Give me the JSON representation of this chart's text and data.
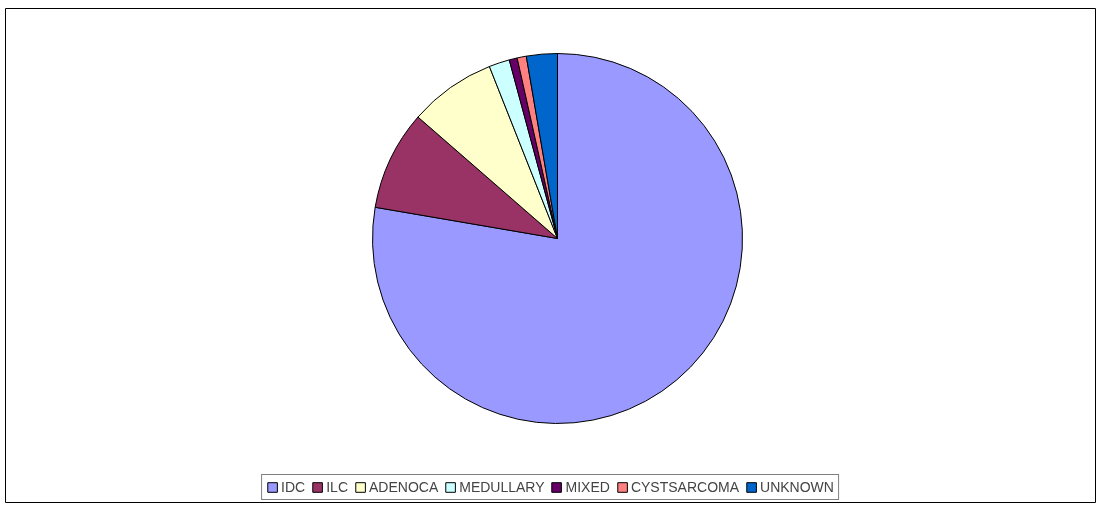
{
  "chart_data": {
    "type": "pie",
    "categories": [
      "IDC",
      "ILC",
      "ADENOCA",
      "MEDULLARY",
      "MIXED",
      "CYSTSARCOMA",
      "UNKNOWN"
    ],
    "values": [
      77.7,
      8.7,
      7.6,
      1.8,
      0.7,
      0.8,
      2.7
    ],
    "colors": [
      "#9999ff",
      "#993366",
      "#ffffcc",
      "#ccffff",
      "#660066",
      "#ff8080",
      "#0066cc"
    ],
    "legend": "bottom"
  }
}
